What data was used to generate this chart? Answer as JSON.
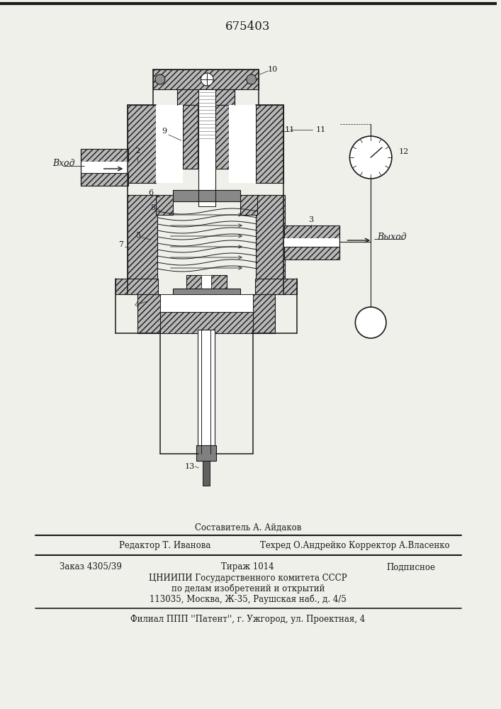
{
  "title": "675403",
  "bg_color": "#f0f0eb",
  "line_color": "#1a1a1a",
  "labels": {
    "vkhod": "Вход",
    "vykhod": "Выход",
    "n2": "2",
    "n3": "3",
    "n4": "4",
    "n5": "5",
    "n6": "6",
    "n7": "7",
    "n8": "8",
    "n9": "9",
    "n10": "10",
    "n11": "11",
    "n12": "12",
    "n13": "13"
  },
  "footer_compiled": "Составитель А. Айдаков",
  "footer_editor": "Редактор Т. Иванова",
  "footer_tech": "Техред О.Андрейко Корректор А.Власенко",
  "footer_order": "Заказ 4305/39",
  "footer_tirazh": "Тираж 1014",
  "footer_podp": "Подписное",
  "footer_org1": "ЦНИИПИ Государственного комитета СССР",
  "footer_org2": "по делам изобретений и открытий",
  "footer_org3": "113035, Москва, Ж-35, Раушская наб., д. 4/5",
  "footer_filial": "Филиал ППП ''Патент'', г. Ужгород, ул. Проектная, 4"
}
